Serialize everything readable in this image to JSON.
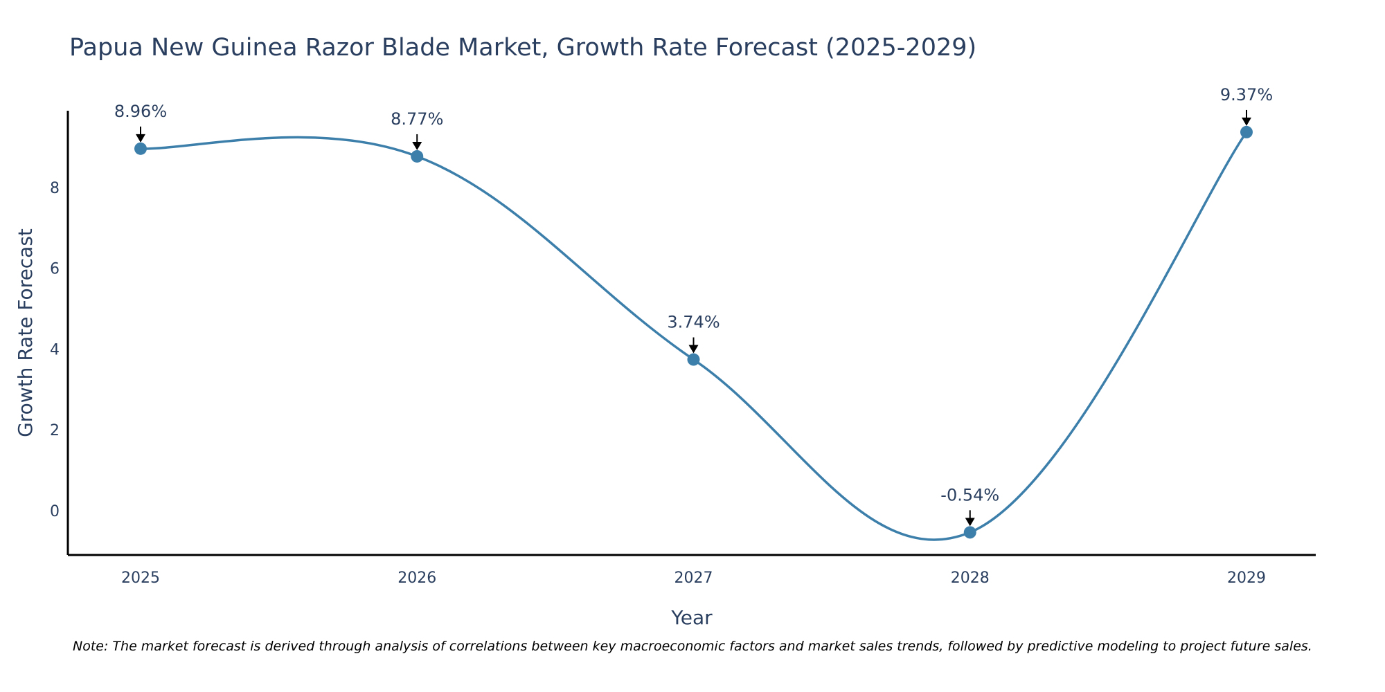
{
  "chart_data": {
    "type": "line",
    "title": "Papua New Guinea Razor Blade Market, Growth Rate Forecast (2025-2029)",
    "xlabel": "Year",
    "ylabel": "Growth Rate Forecast",
    "categories": [
      "2025",
      "2026",
      "2027",
      "2028",
      "2029"
    ],
    "values": [
      8.96,
      8.77,
      3.74,
      -0.54,
      9.37
    ],
    "data_labels": [
      "8.96%",
      "8.77%",
      "3.74%",
      "-0.54%",
      "9.37%"
    ],
    "y_ticks": [
      0,
      2,
      4,
      6,
      8
    ],
    "ylim": [
      -1.1,
      9.9
    ],
    "grid": false,
    "legend": "none",
    "line_color": "#3d7fab",
    "marker_color": "#3d7fab",
    "arrow_color": "#000000",
    "note": "Note: The market forecast is derived through analysis of correlations between key macroeconomic factors and market sales trends, followed by predictive modeling to project future sales."
  }
}
